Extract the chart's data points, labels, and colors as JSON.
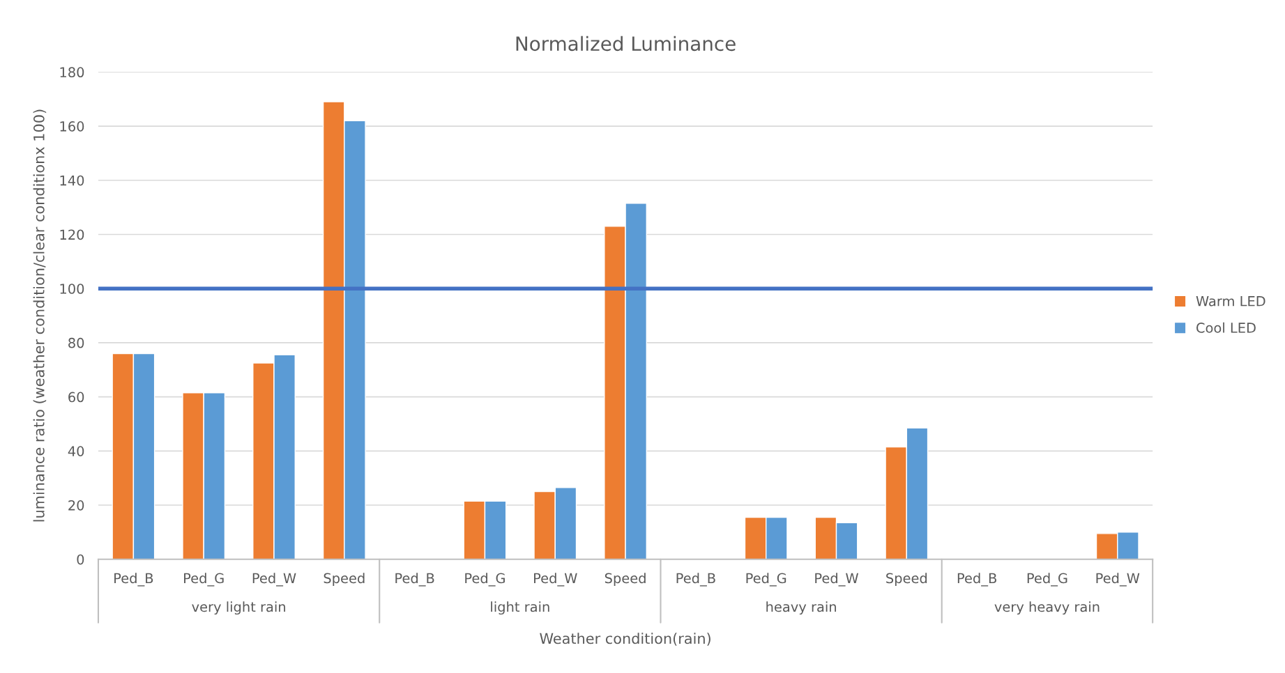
{
  "chart_data": {
    "type": "bar",
    "title": "Normalized Luminance",
    "xlabel": "Weather condition(rain)",
    "ylabel": "luminance ratio (weather condition/clear conditionx 100)",
    "categories": [
      "Ped_B",
      "Ped_G",
      "Ped_W",
      "Speed",
      "Ped_B",
      "Ped_G",
      "Ped_W",
      "Speed",
      "Ped_B",
      "Ped_G",
      "Ped_W",
      "Speed",
      "Ped_B",
      "Ped_G",
      "Ped_W"
    ],
    "annotations": [
      "very light rain",
      "light rain",
      "heavy rain",
      "very heavy rain"
    ],
    "series": [
      {
        "name": "Warm LED",
        "color": "#ed7d31",
        "values": [
          76,
          61.5,
          72.5,
          169,
          null,
          21.5,
          25,
          123,
          null,
          15.5,
          15.5,
          41.5,
          null,
          null,
          9.5
        ]
      },
      {
        "name": "Cool LED",
        "color": "#5b9bd5",
        "values": [
          76,
          61.5,
          75.5,
          162,
          null,
          21.5,
          26.5,
          131.5,
          null,
          15.5,
          13.5,
          48.5,
          null,
          null,
          10
        ]
      }
    ],
    "ylim": [
      0,
      180
    ],
    "yticks": [
      0,
      20,
      40,
      60,
      80,
      100,
      120,
      140,
      160,
      180
    ],
    "ref_lines": [
      {
        "axis": "y",
        "value": 100,
        "color": "#4472c4"
      }
    ],
    "grid": "y",
    "legend": "right"
  }
}
